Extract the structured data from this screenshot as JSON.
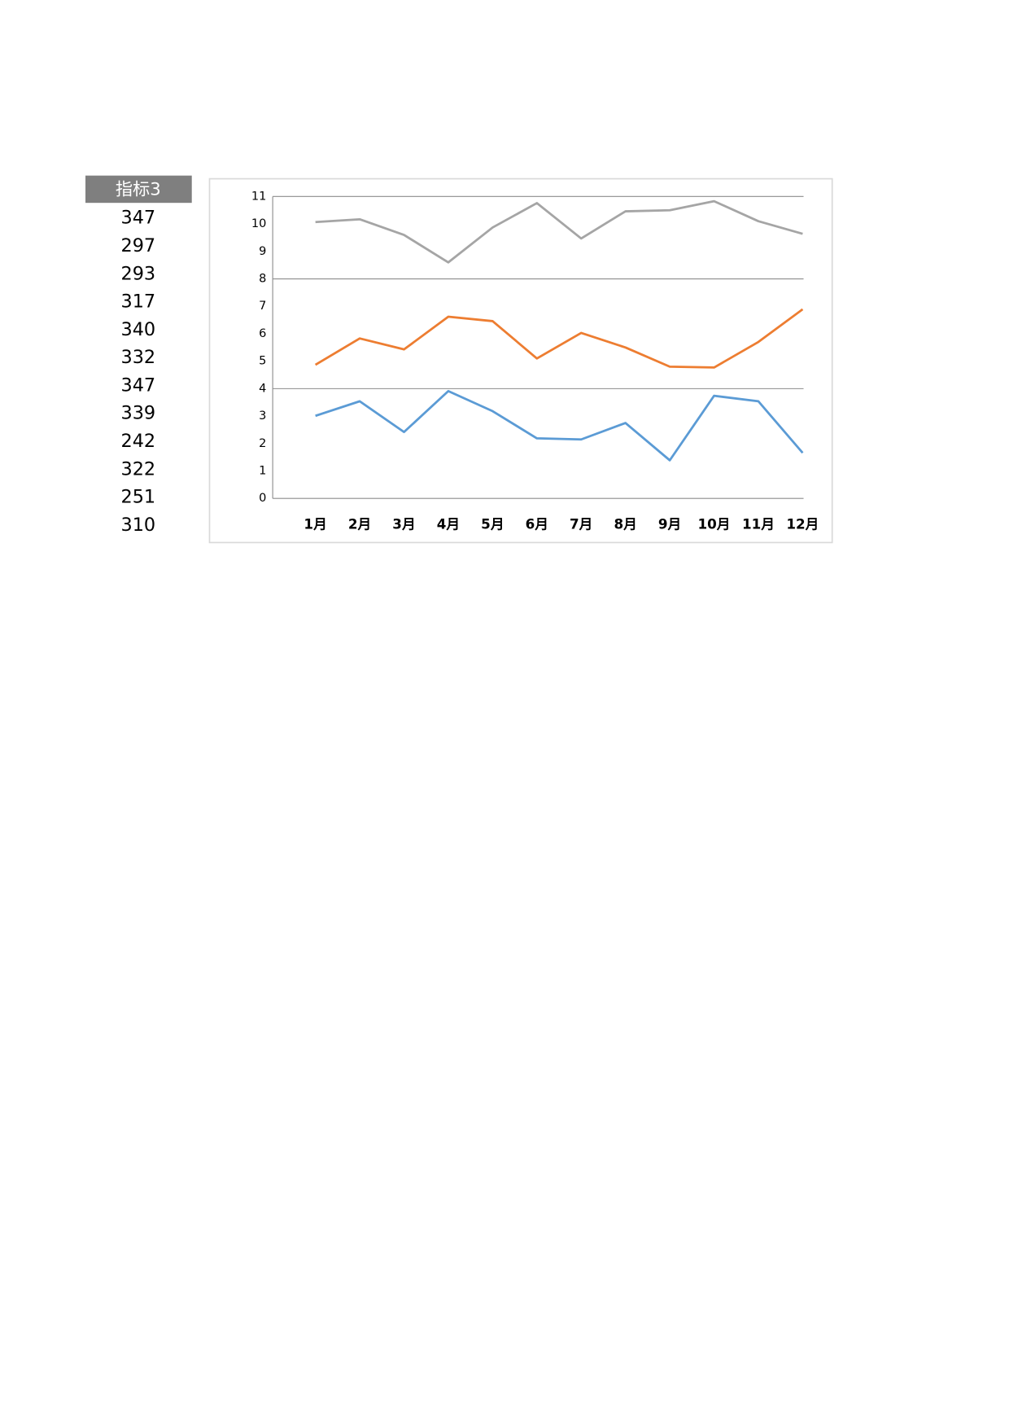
{
  "table": {
    "header": "指标3",
    "rows": [
      347,
      297,
      293,
      317,
      340,
      332,
      347,
      339,
      242,
      322,
      251,
      310
    ]
  },
  "chart_data": {
    "type": "line",
    "categories": [
      "1月",
      "2月",
      "3月",
      "4月",
      "5月",
      "6月",
      "7月",
      "8月",
      "9月",
      "10月",
      "11月",
      "12月"
    ],
    "series": [
      {
        "color": "#5b9bd5",
        "values": [
          3.01,
          3.54,
          2.42,
          3.91,
          3.18,
          2.19,
          2.15,
          2.75,
          1.39,
          3.74,
          3.54,
          1.66
        ]
      },
      {
        "color": "#ed7d31",
        "values": [
          4.87,
          5.83,
          5.43,
          6.62,
          6.46,
          5.1,
          6.03,
          5.5,
          4.8,
          4.77,
          5.7,
          6.89
        ]
      },
      {
        "color": "#a5a5a5",
        "values": [
          10.07,
          10.17,
          9.6,
          8.6,
          9.87,
          10.76,
          9.47,
          10.46,
          10.5,
          10.83,
          10.1,
          9.64
        ]
      }
    ],
    "ylim": [
      0,
      11
    ],
    "yticks": [
      0,
      1,
      2,
      3,
      4,
      5,
      6,
      7,
      8,
      9,
      10,
      11
    ],
    "grid": [
      4,
      8,
      11
    ]
  }
}
